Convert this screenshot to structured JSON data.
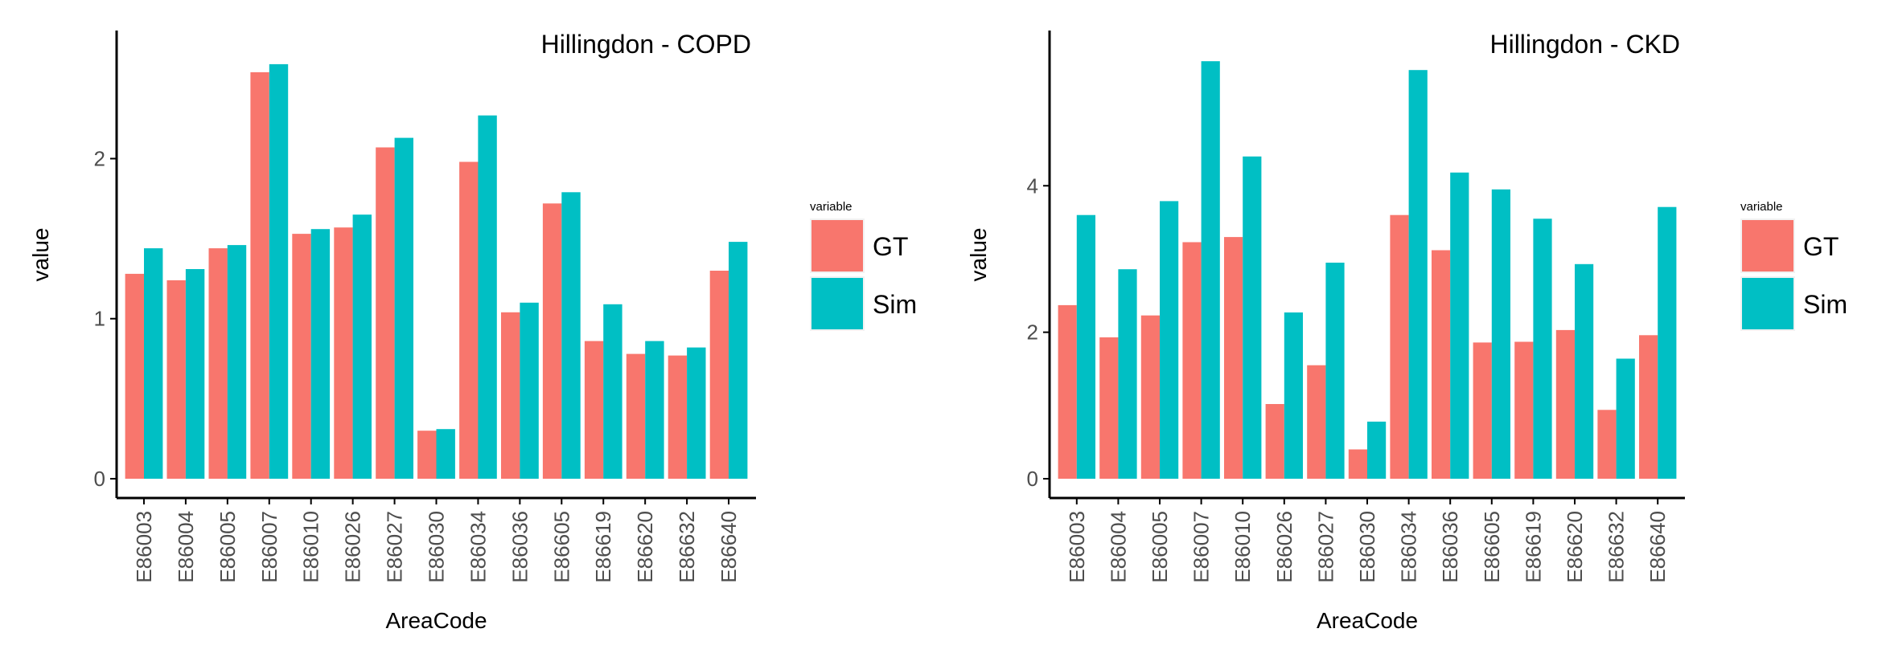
{
  "colors": {
    "GT": "#F8766D",
    "Sim": "#00BFC4",
    "axis": "#000000",
    "tick_text": "#4d4d4d"
  },
  "chart_data": [
    {
      "type": "bar",
      "title": "Hillingdon - COPD",
      "xlabel": "AreaCode",
      "ylabel": "value",
      "ylim": [
        0,
        2.7
      ],
      "yticks": [
        0,
        1,
        2
      ],
      "categories": [
        "E86003",
        "E86004",
        "E86005",
        "E86007",
        "E86010",
        "E86026",
        "E86027",
        "E86030",
        "E86034",
        "E86036",
        "E86605",
        "E86619",
        "E86620",
        "E86632",
        "E86640"
      ],
      "legend": {
        "title": "variable",
        "placement": "right"
      },
      "series": [
        {
          "name": "GT",
          "values": [
            1.28,
            1.24,
            1.44,
            2.54,
            1.53,
            1.57,
            2.07,
            0.3,
            1.98,
            1.04,
            1.72,
            0.86,
            0.78,
            0.77,
            1.3
          ]
        },
        {
          "name": "Sim",
          "values": [
            1.44,
            1.31,
            1.46,
            2.59,
            1.56,
            1.65,
            2.13,
            0.31,
            2.27,
            1.1,
            1.79,
            1.09,
            0.86,
            0.82,
            1.48
          ]
        }
      ]
    },
    {
      "type": "bar",
      "title": "Hillingdon - CKD",
      "xlabel": "AreaCode",
      "ylabel": "value",
      "ylim": [
        0,
        5.9
      ],
      "yticks": [
        0,
        2,
        4
      ],
      "categories": [
        "E86003",
        "E86004",
        "E86005",
        "E86007",
        "E86010",
        "E86026",
        "E86027",
        "E86030",
        "E86034",
        "E86036",
        "E86605",
        "E86619",
        "E86620",
        "E86632",
        "E86640"
      ],
      "legend": {
        "title": "variable",
        "placement": "right"
      },
      "series": [
        {
          "name": "GT",
          "values": [
            2.37,
            1.93,
            2.23,
            3.23,
            3.3,
            1.02,
            1.55,
            0.4,
            3.6,
            3.12,
            1.86,
            1.87,
            2.03,
            0.94,
            1.96
          ]
        },
        {
          "name": "Sim",
          "values": [
            3.6,
            2.86,
            3.79,
            5.7,
            4.4,
            2.27,
            2.95,
            0.78,
            5.58,
            4.18,
            3.95,
            3.55,
            2.93,
            1.64,
            3.71
          ]
        }
      ]
    }
  ]
}
